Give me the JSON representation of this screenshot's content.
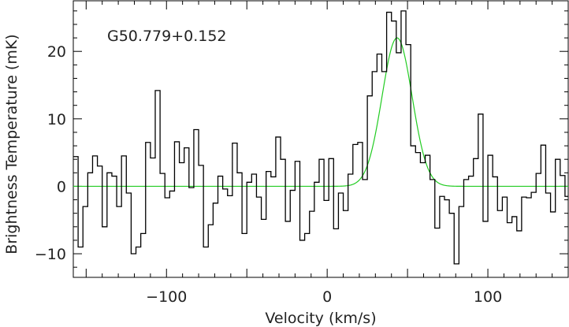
{
  "chart_data": {
    "type": "line",
    "title": "",
    "annotation": "G50.779+0.152",
    "xlabel": "Velocity (km/s)",
    "ylabel": "Brightness Temperature (mK)",
    "xlim": [
      -158,
      150
    ],
    "ylim": [
      -13.5,
      27.5
    ],
    "xticks": [
      -100,
      0,
      100
    ],
    "yticks": [
      -10,
      0,
      10,
      20
    ],
    "xtick_labels": [
      "−100",
      "0",
      "100"
    ],
    "ytick_labels": [
      "−10",
      "0",
      "10",
      "20"
    ],
    "grid": false,
    "series": [
      {
        "style": "step",
        "color": "#000000",
        "x": [
          -158,
          -155,
          -152,
          -149,
          -146,
          -143,
          -140,
          -137,
          -134,
          -131,
          -128,
          -125,
          -122,
          -119,
          -116,
          -113,
          -110,
          -107,
          -104,
          -101,
          -98,
          -95,
          -92,
          -89,
          -86,
          -83,
          -80,
          -77,
          -74,
          -71,
          -68,
          -65,
          -62,
          -59,
          -56,
          -53,
          -50,
          -47,
          -44,
          -41,
          -38,
          -35,
          -32,
          -29,
          -26,
          -23,
          -20,
          -17,
          -14,
          -11,
          -8,
          -5,
          -2,
          1,
          4,
          7,
          10,
          13,
          16,
          19,
          22,
          25,
          28,
          31,
          34,
          37,
          40,
          43,
          46,
          49,
          52,
          55,
          58,
          61,
          64,
          67,
          70,
          73,
          76,
          79,
          82,
          85,
          88,
          91,
          94,
          97,
          100,
          103,
          106,
          109,
          112,
          115,
          118,
          121,
          124,
          127,
          130,
          133,
          136,
          139,
          142,
          145,
          148
        ],
        "y": [
          4.4,
          -9,
          -3,
          2,
          4.5,
          3,
          -6,
          2,
          1.5,
          -3,
          4.5,
          -1,
          -10,
          -9,
          -7,
          6.5,
          4.2,
          14.2,
          1.9,
          -1.7,
          -0.7,
          6.6,
          3.5,
          5.7,
          -0.2,
          8.4,
          3.1,
          -9,
          -5.7,
          -2.5,
          1.5,
          -0.4,
          -1.4,
          6.4,
          2,
          -7,
          0.6,
          1.8,
          -1.6,
          -4.9,
          2.2,
          1.4,
          7.3,
          4,
          -5.2,
          -0.6,
          3.7,
          -8,
          -7,
          -3.7,
          0.6,
          4,
          -2.1,
          4.1,
          -6.3,
          -1,
          -3.6,
          1.8,
          6.2,
          6.5,
          1,
          13.4,
          17,
          19.6,
          17,
          25.8,
          24.5,
          19.8,
          26,
          21,
          6,
          5,
          3.5,
          4.6,
          1,
          -6.2,
          -1.5,
          -2,
          -4,
          -11.5,
          -3,
          1,
          1.5,
          4.1,
          10.7,
          -5.2,
          4.6,
          1.4,
          -3.6,
          -1.6,
          -5.4,
          -4.5,
          -6.6,
          -1.6,
          -1.7,
          -0.9,
          1.9,
          6.1,
          -1,
          -3.8,
          4,
          1.6,
          -1.5
        ]
      },
      {
        "style": "line",
        "color": "#22cc22",
        "fit": "gaussian",
        "amplitude": 22,
        "center": 43.5,
        "fwhm": 22
      }
    ]
  }
}
